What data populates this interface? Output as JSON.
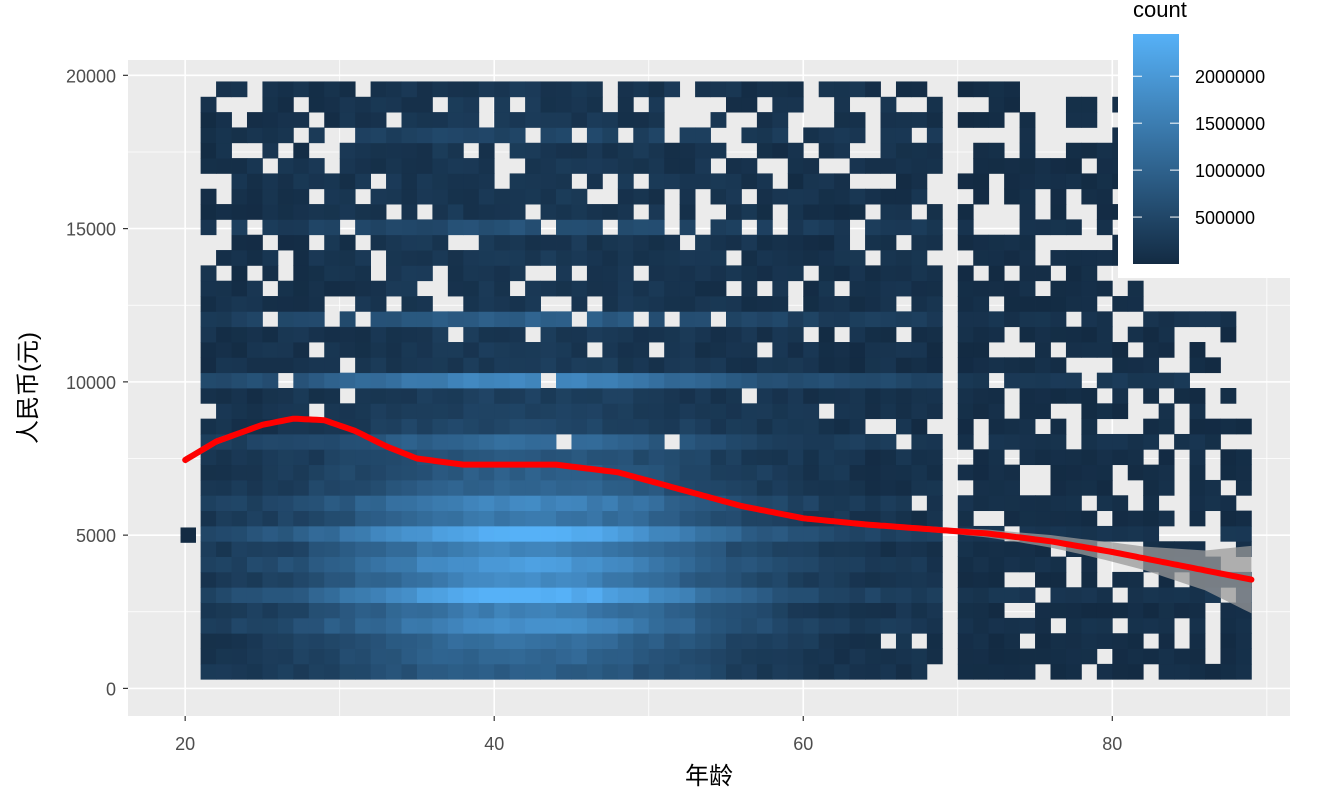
{
  "chart_data": {
    "type": "heatmap",
    "title": "",
    "xlabel": "年龄",
    "ylabel": "人民币(元)",
    "xlim": [
      16.3,
      91.5
    ],
    "ylim": [
      -900,
      20500
    ],
    "x_ticks": [
      20,
      40,
      60,
      80
    ],
    "x_tick_labels": [
      "20",
      "40",
      "60",
      "80"
    ],
    "y_ticks": [
      0,
      5000,
      10000,
      15000,
      20000
    ],
    "y_tick_labels": [
      "0",
      "5000",
      "10000",
      "15000",
      "20000"
    ],
    "grid": true,
    "legend": {
      "title": "count",
      "position": "top-right",
      "ticks": [
        500000,
        1000000,
        1500000,
        2000000
      ],
      "tick_labels": [
        "500000",
        "1000000",
        "1500000",
        "2000000"
      ],
      "range": [
        0,
        2450000
      ],
      "low_color": "#132B43",
      "high_color": "#56B1F7"
    },
    "bins": {
      "x_start": 21,
      "x_end": 89,
      "x_gap": [
        69,
        70
      ],
      "y_start": 300,
      "y_end": 19800,
      "y_height": 500,
      "isolated_bin": {
        "x": 20,
        "y": 5000
      }
    },
    "smooth_line": {
      "color": "#FF0000",
      "x": [
        20,
        22,
        25,
        27,
        29,
        31,
        33,
        35,
        38,
        40,
        44,
        48,
        52,
        56,
        60,
        64,
        68,
        72,
        76,
        80,
        84,
        89
      ],
      "y": [
        7450,
        8050,
        8600,
        8800,
        8750,
        8400,
        7900,
        7500,
        7300,
        7300,
        7300,
        7050,
        6500,
        5950,
        5550,
        5350,
        5200,
        5050,
        4800,
        4450,
        4050,
        3550
      ]
    },
    "confidence_band": {
      "color": "#999999",
      "x": [
        20,
        25,
        30,
        40,
        50,
        60,
        66,
        70,
        74,
        78,
        82,
        86,
        89
      ],
      "half_width": [
        120,
        80,
        60,
        50,
        50,
        60,
        80,
        100,
        160,
        250,
        380,
        650,
        1100
      ]
    }
  }
}
